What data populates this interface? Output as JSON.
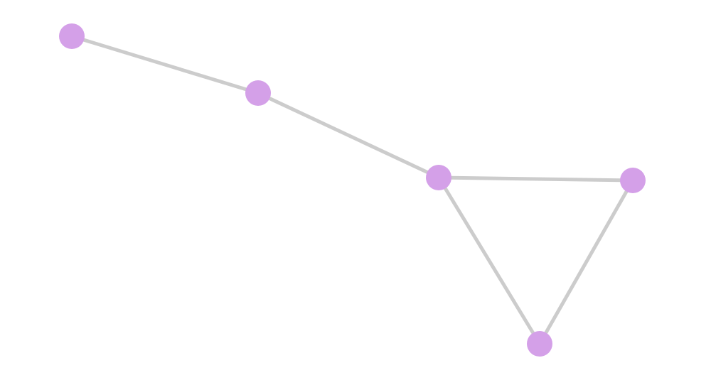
{
  "graph": {
    "node_color": "#d4a0e8",
    "edge_color": "#cccccc",
    "nodes": [
      {
        "id": "n0"
      },
      {
        "id": "n1"
      },
      {
        "id": "n2"
      },
      {
        "id": "n3"
      },
      {
        "id": "n4"
      }
    ],
    "edges": [
      [
        "n0",
        "n1"
      ],
      [
        "n1",
        "n2"
      ],
      [
        "n2",
        "n3"
      ],
      [
        "n2",
        "n4"
      ],
      [
        "n3",
        "n4"
      ]
    ]
  }
}
